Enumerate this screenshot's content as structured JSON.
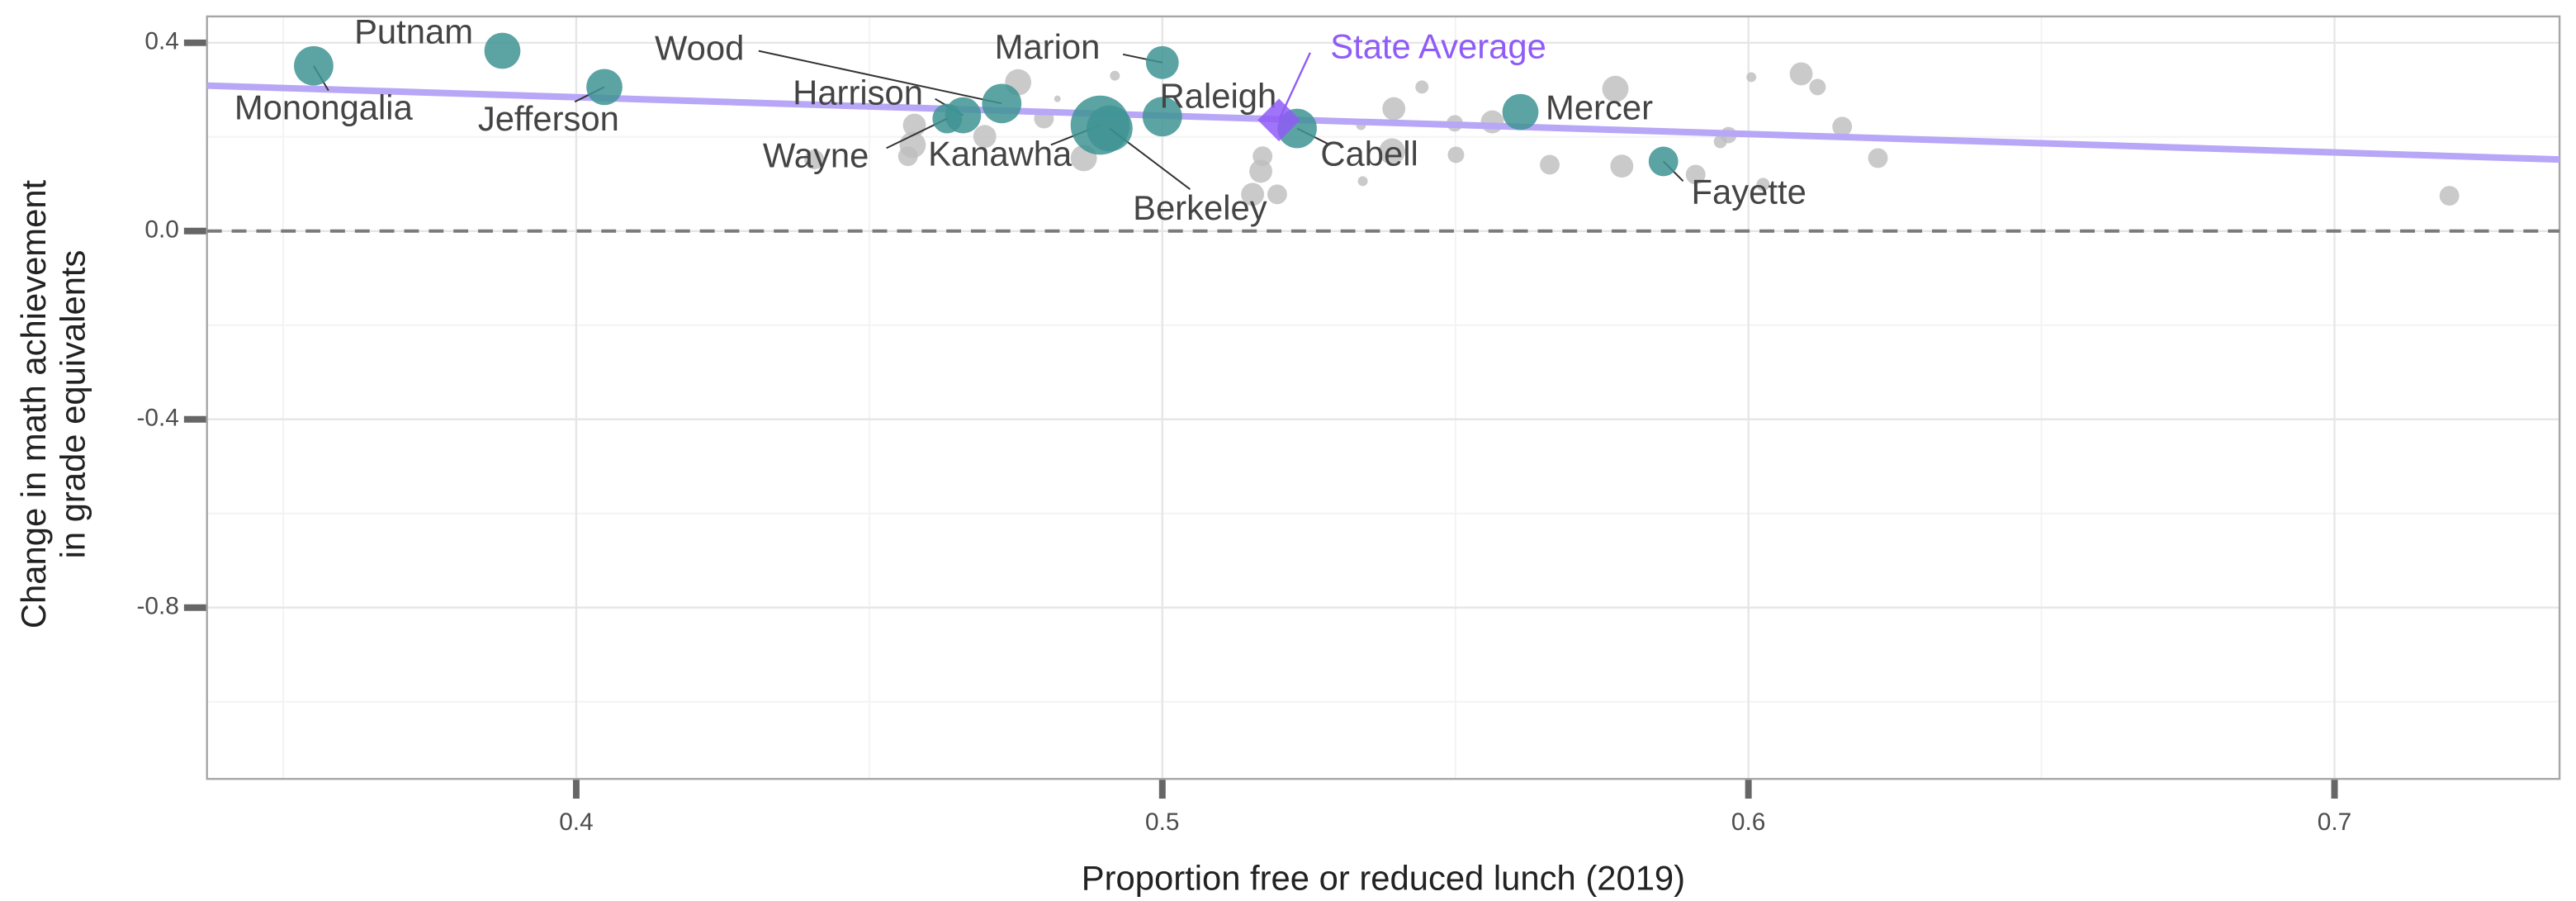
{
  "chart_data": {
    "type": "scatter",
    "x_label": "Proportion free or reduced lunch (2019)",
    "y_label": [
      "Change in math achievement",
      "in grade equivalents"
    ],
    "xlim": [
      0.337,
      0.7384
    ],
    "ylim": [
      -1.164,
      0.456
    ],
    "xticks": [
      0.4,
      0.5,
      0.6,
      0.7
    ],
    "yticks": [
      0.4,
      {
        "value": 0,
        "label": "0.0"
      },
      -0.4,
      -0.8
    ],
    "x_minor_ticks": [
      0.35,
      0.45,
      0.55,
      0.65
    ],
    "y_minor_ticks": [
      0.2,
      -0.2,
      -0.6,
      -1.0
    ],
    "grid": true,
    "hline": 0,
    "trend_line": {
      "color": "#b8a6f7",
      "x": [
        0.337,
        0.7384
      ],
      "y": [
        0.309,
        0.152
      ]
    },
    "highlighted": {
      "color": "#3f9494",
      "labels": [
        "Monongalia",
        "Putnam",
        "Jefferson",
        "Wood",
        "Harrison",
        "Wayne",
        "Kanawha",
        "Berkeley",
        "Raleigh",
        "Marion",
        "Cabell",
        "Mercer",
        "Fayette"
      ],
      "x": [
        0.3552,
        0.3874,
        0.4048,
        0.4726,
        0.466,
        0.4633,
        0.4894,
        0.491,
        0.5,
        0.5,
        0.523,
        0.5611,
        0.5855
      ],
      "y": [
        0.351,
        0.383,
        0.306,
        0.271,
        0.246,
        0.239,
        0.225,
        0.218,
        0.243,
        0.358,
        0.218,
        0.253,
        0.148
      ],
      "size": [
        12,
        11,
        11,
        12,
        11,
        9,
        18,
        14,
        12,
        10,
        12,
        11,
        9
      ]
    },
    "others": {
      "color": "#bdbdbd",
      "x": [
        0.4754,
        0.4798,
        0.4577,
        0.4574,
        0.4566,
        0.4866,
        0.4919,
        0.4821,
        0.4697,
        0.4406,
        0.5171,
        0.5168,
        0.5154,
        0.5196,
        0.5395,
        0.5392,
        0.5443,
        0.5499,
        0.5501,
        0.5563,
        0.5339,
        0.5773,
        0.5784,
        0.5661,
        0.591,
        0.5966,
        0.5952,
        0.6005,
        0.609,
        0.6118,
        0.616,
        0.6221,
        0.6025,
        0.7196,
        0.5342
      ],
      "y": [
        0.316,
        0.239,
        0.225,
        0.183,
        0.159,
        0.155,
        0.33,
        0.281,
        0.201,
        0.152,
        0.159,
        0.127,
        0.078,
        0.078,
        0.26,
        0.169,
        0.306,
        0.229,
        0.162,
        0.232,
        0.225,
        0.302,
        0.138,
        0.141,
        0.12,
        0.204,
        0.19,
        0.327,
        0.334,
        0.306,
        0.222,
        0.155,
        0.099,
        0.075,
        0.106
      ],
      "size": [
        8,
        6,
        7,
        8,
        6,
        8,
        3,
        2,
        7,
        6,
        6,
        7,
        7,
        6,
        7,
        8,
        4,
        5,
        5,
        7,
        3,
        8,
        7,
        6,
        6,
        5,
        4,
        3,
        7,
        5,
        6,
        6,
        4,
        6,
        3
      ]
    },
    "state_average": {
      "label": "State Average",
      "color": "#8f5cf7",
      "x": 0.5199,
      "y": 0.236
    }
  }
}
